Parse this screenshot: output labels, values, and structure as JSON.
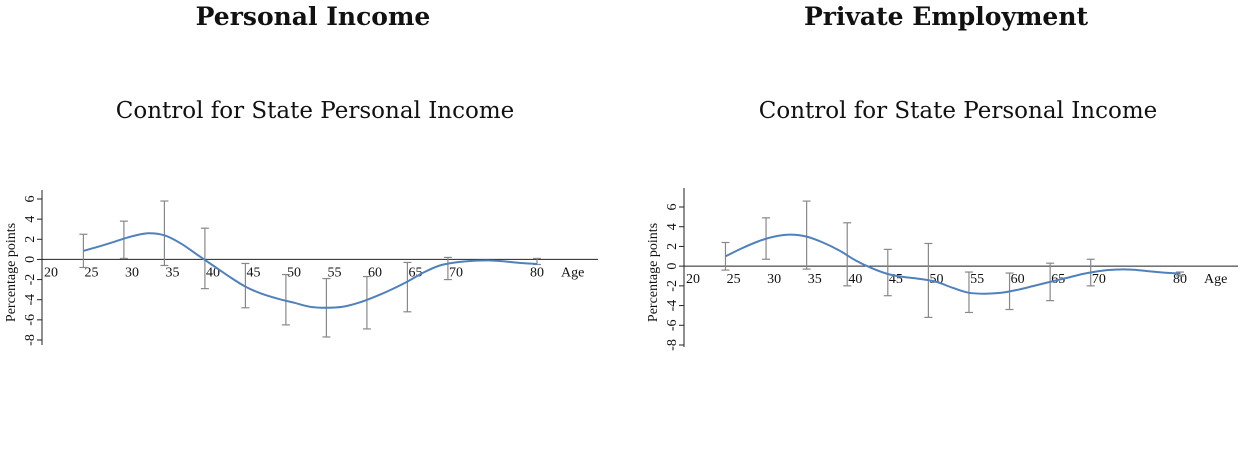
{
  "panels": [
    {
      "title": "Personal Income",
      "subtitle": "Control for State Personal Income"
    },
    {
      "title": "Private Employment",
      "subtitle": "Control for State Personal Income"
    }
  ],
  "chart_data": [
    {
      "type": "line",
      "title": "Personal Income",
      "subtitle": "Control for State Personal Income",
      "xlabel": "Age",
      "ylabel": "Percentage points",
      "xlim": [
        20,
        83
      ],
      "ylim": [
        -8.5,
        6.5
      ],
      "xticks": [
        20,
        25,
        30,
        35,
        40,
        45,
        50,
        55,
        60,
        65,
        70,
        80
      ],
      "yticks": [
        6,
        4,
        2,
        0,
        -2,
        -4,
        -6,
        -8
      ],
      "series_color": "#4f81bd",
      "errorbar_color": "#888888",
      "curve": {
        "x": [
          24,
          26,
          28,
          30,
          32,
          34,
          36,
          38,
          40,
          42,
          44,
          46,
          48,
          50,
          52,
          54,
          56,
          58,
          60,
          62,
          64,
          66,
          68,
          70,
          72,
          74,
          76,
          78,
          80
        ],
        "y": [
          0.85,
          1.3,
          1.8,
          2.3,
          2.6,
          2.4,
          1.6,
          0.5,
          -0.6,
          -1.7,
          -2.7,
          -3.4,
          -3.9,
          -4.3,
          -4.7,
          -4.8,
          -4.7,
          -4.3,
          -3.7,
          -3.0,
          -2.2,
          -1.3,
          -0.6,
          -0.3,
          -0.15,
          -0.1,
          -0.2,
          -0.35,
          -0.45
        ]
      },
      "errorbars": [
        {
          "x": 24,
          "low": -0.8,
          "high": 2.5
        },
        {
          "x": 29,
          "low": 0.1,
          "high": 3.8
        },
        {
          "x": 34,
          "low": -0.6,
          "high": 5.8
        },
        {
          "x": 39,
          "low": -2.9,
          "high": 3.1
        },
        {
          "x": 44,
          "low": -4.8,
          "high": -0.4
        },
        {
          "x": 49,
          "low": -6.5,
          "high": -1.5
        },
        {
          "x": 54,
          "low": -7.7,
          "high": -1.9
        },
        {
          "x": 59,
          "low": -6.9,
          "high": -1.7
        },
        {
          "x": 64,
          "low": -5.2,
          "high": -0.3
        },
        {
          "x": 69,
          "low": -2.0,
          "high": 0.2
        },
        {
          "x": 80,
          "low": -0.5,
          "high": 0.1
        }
      ]
    },
    {
      "type": "line",
      "title": "Private Employment",
      "subtitle": "Control for State Personal Income",
      "xlabel": "Age",
      "ylabel": "Percentage points",
      "xlim": [
        20,
        83
      ],
      "ylim": [
        -8.5,
        7.0
      ],
      "xticks": [
        20,
        25,
        30,
        35,
        40,
        45,
        50,
        55,
        60,
        65,
        70,
        80
      ],
      "yticks": [
        6,
        4,
        2,
        0,
        -2,
        -4,
        -6,
        -8
      ],
      "series_color": "#4f81bd",
      "errorbar_color": "#888888",
      "curve": {
        "x": [
          24,
          26,
          28,
          30,
          32,
          34,
          36,
          38,
          40,
          42,
          44,
          46,
          48,
          50,
          52,
          54,
          56,
          58,
          60,
          62,
          64,
          66,
          68,
          70,
          72,
          74,
          76,
          78,
          80
        ],
        "y": [
          1.0,
          1.8,
          2.5,
          3.0,
          3.2,
          3.0,
          2.4,
          1.6,
          0.6,
          -0.2,
          -0.8,
          -1.1,
          -1.3,
          -1.6,
          -2.2,
          -2.7,
          -2.8,
          -2.7,
          -2.4,
          -2.0,
          -1.6,
          -1.2,
          -0.8,
          -0.5,
          -0.35,
          -0.35,
          -0.5,
          -0.65,
          -0.75
        ]
      },
      "errorbars": [
        {
          "x": 24,
          "low": -0.4,
          "high": 2.4
        },
        {
          "x": 29,
          "low": 0.7,
          "high": 4.9
        },
        {
          "x": 34,
          "low": -0.3,
          "high": 6.6
        },
        {
          "x": 39,
          "low": -2.0,
          "high": 4.4
        },
        {
          "x": 44,
          "low": -3.0,
          "high": 1.7
        },
        {
          "x": 49,
          "low": -5.2,
          "high": 2.3
        },
        {
          "x": 54,
          "low": -4.7,
          "high": -0.6
        },
        {
          "x": 59,
          "low": -4.4,
          "high": -0.7
        },
        {
          "x": 64,
          "low": -3.5,
          "high": 0.3
        },
        {
          "x": 69,
          "low": -2.0,
          "high": 0.7
        },
        {
          "x": 80,
          "low": -1.0,
          "high": -0.6
        }
      ]
    }
  ]
}
